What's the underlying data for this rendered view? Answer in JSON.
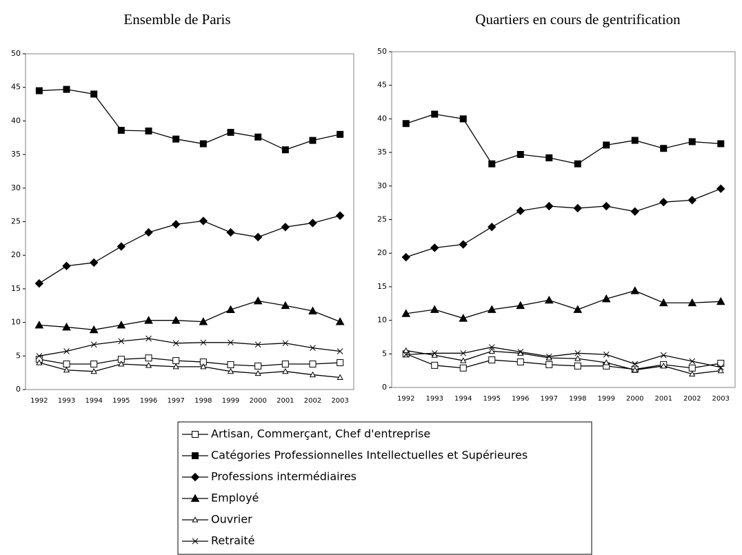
{
  "chart_data": [
    {
      "type": "line",
      "title": "Ensemble de Paris",
      "categories": [
        "1992",
        "1993",
        "1994",
        "1995",
        "1996",
        "1997",
        "1998",
        "1999",
        "2000",
        "2001",
        "2002",
        "2003"
      ],
      "ylim": [
        0,
        50
      ],
      "yticks": [
        0,
        5,
        10,
        15,
        20,
        25,
        30,
        35,
        40,
        45,
        50
      ],
      "series": [
        {
          "name": "Artisan, Commerçant, Chef d'entreprise",
          "color": "#000000",
          "marker": "square-open",
          "values": [
            4.5,
            3.8,
            3.8,
            4.5,
            4.7,
            4.3,
            4.1,
            3.7,
            3.5,
            3.8,
            3.8,
            4.0
          ]
        },
        {
          "name": "Catégories Professionnelles Intellectuelles et Supérieures",
          "color": "#000000",
          "marker": "square",
          "values": [
            44.5,
            44.7,
            44.0,
            38.6,
            38.5,
            37.3,
            36.6,
            38.3,
            37.6,
            35.7,
            37.1,
            38.0
          ]
        },
        {
          "name": "Professions intermédiaires",
          "color": "#000000",
          "marker": "diamond",
          "values": [
            15.8,
            18.4,
            18.9,
            21.3,
            23.4,
            24.6,
            25.1,
            23.4,
            22.7,
            24.2,
            24.8,
            25.9
          ]
        },
        {
          "name": "Employé",
          "color": "#000000",
          "marker": "triangle",
          "values": [
            9.6,
            9.3,
            8.9,
            9.6,
            10.3,
            10.3,
            10.1,
            11.9,
            13.2,
            12.5,
            11.7,
            10.1
          ]
        },
        {
          "name": "Ouvrier",
          "color": "#000000",
          "marker": "triangle-open",
          "values": [
            4.0,
            2.9,
            2.7,
            3.8,
            3.6,
            3.4,
            3.4,
            2.7,
            2.4,
            2.7,
            2.2,
            1.8
          ]
        },
        {
          "name": "Retraité",
          "color": "#000000",
          "marker": "x",
          "values": [
            5.0,
            5.7,
            6.7,
            7.2,
            7.6,
            6.9,
            7.0,
            7.0,
            6.7,
            6.9,
            6.2,
            5.7
          ]
        }
      ]
    },
    {
      "type": "line",
      "title": "Quartiers en cours de gentrification",
      "categories": [
        "1992",
        "1993",
        "1994",
        "1995",
        "1996",
        "1997",
        "1998",
        "1999",
        "2000",
        "2001",
        "2002",
        "2003"
      ],
      "ylim": [
        0,
        50
      ],
      "yticks": [
        0,
        5,
        10,
        15,
        20,
        25,
        30,
        35,
        40,
        45,
        50
      ],
      "series": [
        {
          "color": "#000000",
          "marker": "square-open",
          "values": [
            5.0,
            3.3,
            2.9,
            4.1,
            3.8,
            3.4,
            3.2,
            3.2,
            2.7,
            3.4,
            2.9,
            3.6
          ]
        },
        {
          "color": "#000000",
          "marker": "square",
          "values": [
            39.3,
            40.7,
            40.0,
            33.3,
            34.7,
            34.2,
            33.3,
            36.1,
            36.8,
            35.6,
            36.6,
            36.3
          ]
        },
        {
          "color": "#000000",
          "marker": "diamond",
          "values": [
            19.4,
            20.8,
            21.3,
            23.9,
            26.3,
            27.0,
            26.7,
            27.0,
            26.2,
            27.6,
            27.9,
            29.6
          ]
        },
        {
          "color": "#000000",
          "marker": "triangle",
          "values": [
            11.0,
            11.6,
            10.3,
            11.6,
            12.2,
            13.0,
            11.6,
            13.2,
            14.4,
            12.6,
            12.6,
            12.8
          ]
        },
        {
          "color": "#000000",
          "marker": "triangle-open",
          "values": [
            5.5,
            4.8,
            4.0,
            5.4,
            5.1,
            4.4,
            4.3,
            3.7,
            2.6,
            3.2,
            2.0,
            2.5
          ]
        },
        {
          "color": "#000000",
          "marker": "x",
          "values": [
            4.9,
            5.1,
            5.1,
            6.0,
            5.3,
            4.6,
            5.1,
            4.9,
            3.5,
            4.8,
            3.9,
            3.0
          ]
        }
      ]
    }
  ]
}
